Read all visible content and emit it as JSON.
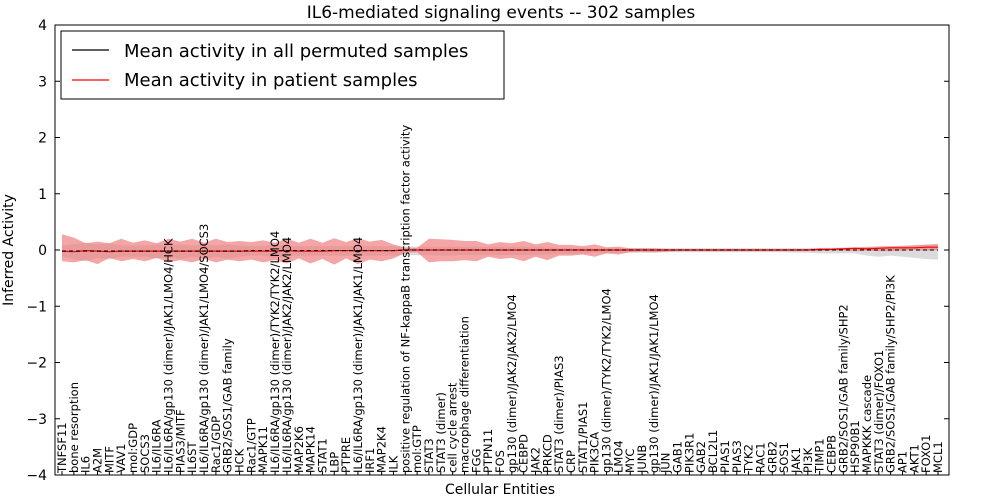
{
  "chart_data": {
    "type": "line",
    "title": "IL6-mediated signaling events -- 302 samples",
    "xlabel": "Cellular Entities",
    "ylabel": "Inferred Activity",
    "ylim": [
      -4,
      4
    ],
    "yticks": [
      -4,
      -3,
      -2,
      -1,
      0,
      1,
      2,
      3,
      4
    ],
    "grid": false,
    "legend_position": "top-left",
    "colors": {
      "permuted": "#000000",
      "patient": "#ff0000",
      "patient_band": "#f08080",
      "permuted_band": "#bdbdbd"
    },
    "categories": [
      "TNFSF11",
      "bone resorption",
      "IL6",
      "A2M",
      "MITF",
      "VAV1",
      "mol:GDP",
      "SOCS3",
      "IL6/IL6RA",
      "IL6/IL6RA/gp130 (dimer)/JAK1/LMO4/HCK",
      "PIAS3/MITF",
      "IL6ST",
      "IL6/IL6RA/gp130 (dimer)/JAK1/LMO4/SOCS3",
      "Rac1/GDP",
      "GRB2/SOS1/GAB family",
      "HCK",
      "Rac1/GTP",
      "MAPK11",
      "IL6/IL6RA/gp130 (dimer)/TYK2/TYK2/LMO4",
      "IL6/IL6RA/gp130 (dimer)/JAK2/JAK2/LMO4",
      "MAP2K6",
      "MAPK14",
      "STAT1",
      "LBP",
      "PTPRE",
      "IL6/IL6RA/gp130 (dimer)/JAK1/JAK1/LMO4",
      "IRF1",
      "MAP2K4",
      "ILK",
      "positive regulation of NF-kappaB transcription factor activity",
      "mol:GTP",
      "STAT3",
      "STAT3 (dimer)",
      "cell cycle arrest",
      "macrophage differentiation",
      "FGG",
      "PTPN11",
      "FOS",
      "gp130 (dimer)/JAK2/JAK2/LMO4",
      "CEBPD",
      "JAK2",
      "PRKCD",
      "STAT3 (dimer)/PIAS3",
      "CRP",
      "STAT1/PIAS1",
      "PIK3CA",
      "gp130 (dimer)/TYK2/TYK2/LMO4",
      "LMO4",
      "MYC",
      "JUNB",
      "gp130 (dimer)/JAK1/JAK1/LMO4",
      "JUN",
      "GAB1",
      "PIK3R1",
      "GAB2",
      "BCL2L1",
      "PIAS1",
      "PIAS3",
      "TYK2",
      "RAC1",
      "GRB2",
      "SOS1",
      "JAK1",
      "PI3K",
      "TIMP1",
      "CEBPB",
      "GRB2/SOS1/GAB family/SHP2",
      "HSP90B1",
      "MAPKKK cascade",
      "STAT3 (dimer)/FOXO1",
      "GRB2/SOS1/GAB family/SHP2/PI3K",
      "AP1",
      "AKT1",
      "FOXO1",
      "MCL1"
    ],
    "series": [
      {
        "name": "Mean activity in all permuted samples",
        "values": [
          -0.02,
          -0.02,
          -0.02,
          -0.02,
          -0.02,
          -0.02,
          -0.02,
          -0.02,
          -0.02,
          -0.02,
          -0.02,
          -0.02,
          -0.02,
          -0.02,
          -0.02,
          -0.02,
          -0.01,
          -0.01,
          -0.01,
          -0.01,
          -0.01,
          -0.01,
          -0.01,
          -0.01,
          -0.01,
          -0.01,
          -0.01,
          -0.01,
          -0.01,
          0.0,
          0.0,
          0.0,
          0.0,
          0.0,
          0.0,
          0.0,
          0.0,
          0.0,
          0.0,
          0.0,
          0.0,
          0.0,
          0.0,
          0.0,
          0.0,
          0.0,
          0.0,
          0.0,
          0.0,
          0.0,
          0.0,
          0.0,
          0.0,
          0.0,
          0.0,
          0.0,
          0.0,
          0.0,
          0.0,
          0.0,
          0.0,
          0.0,
          0.0,
          0.0,
          0.0,
          0.0,
          0.0,
          0.0,
          0.0,
          0.0,
          0.0,
          0.0,
          0.0,
          0.0,
          0.0
        ],
        "lower": [
          -0.12,
          -0.16,
          -0.2,
          -0.14,
          -0.17,
          -0.12,
          -0.12,
          -0.12,
          -0.15,
          -0.12,
          -0.16,
          -0.12,
          -0.15,
          -0.12,
          -0.16,
          -0.12,
          -0.1,
          -0.1,
          -0.15,
          -0.1,
          -0.1,
          -0.1,
          -0.1,
          -0.1,
          -0.1,
          -0.1,
          -0.1,
          -0.1,
          -0.1,
          -0.09,
          -0.09,
          -0.09,
          -0.1,
          -0.1,
          -0.09,
          -0.09,
          -0.09,
          -0.09,
          -0.09,
          -0.09,
          -0.09,
          -0.08,
          -0.07,
          -0.07,
          -0.07,
          -0.05,
          -0.06,
          -0.05,
          -0.05,
          -0.05,
          -0.05,
          -0.04,
          -0.04,
          -0.04,
          -0.04,
          -0.04,
          -0.04,
          -0.04,
          -0.04,
          -0.04,
          -0.04,
          -0.04,
          -0.05,
          -0.05,
          -0.06,
          -0.06,
          -0.06,
          -0.06,
          -0.1,
          -0.12,
          -0.1,
          -0.12,
          -0.14,
          -0.16,
          -0.17
        ],
        "upper": [
          0.08,
          0.1,
          0.13,
          0.1,
          0.12,
          0.08,
          0.08,
          0.08,
          0.1,
          0.08,
          0.1,
          0.08,
          0.1,
          0.08,
          0.1,
          0.08,
          0.07,
          0.07,
          0.1,
          0.07,
          0.07,
          0.07,
          0.07,
          0.07,
          0.07,
          0.07,
          0.07,
          0.07,
          0.07,
          0.06,
          0.06,
          0.06,
          0.06,
          0.06,
          0.06,
          0.06,
          0.06,
          0.06,
          0.06,
          0.06,
          0.06,
          0.05,
          0.04,
          0.04,
          0.04,
          0.03,
          0.03,
          0.03,
          0.03,
          0.03,
          0.03,
          0.03,
          0.03,
          0.03,
          0.03,
          0.03,
          0.03,
          0.03,
          0.03,
          0.03,
          0.03,
          0.03,
          0.03,
          0.03,
          0.04,
          0.04,
          0.04,
          0.04,
          0.06,
          0.07,
          0.06,
          0.08,
          0.09,
          0.1,
          0.11
        ]
      },
      {
        "name": "Mean activity in patient samples",
        "values": [
          -0.02,
          -0.03,
          -0.01,
          -0.02,
          -0.03,
          -0.02,
          -0.02,
          -0.02,
          -0.02,
          -0.02,
          -0.02,
          -0.02,
          -0.02,
          -0.02,
          -0.02,
          -0.02,
          -0.02,
          -0.02,
          -0.02,
          -0.01,
          -0.02,
          -0.02,
          -0.02,
          -0.01,
          -0.01,
          -0.01,
          -0.01,
          -0.01,
          -0.01,
          0.0,
          0.0,
          0.0,
          0.0,
          0.0,
          0.0,
          0.0,
          0.0,
          0.0,
          0.0,
          0.0,
          0.0,
          0.0,
          0.0,
          0.0,
          0.0,
          0.0,
          0.0,
          0.0,
          0.0,
          0.0,
          0.0,
          0.0,
          0.0,
          0.0,
          0.0,
          0.0,
          0.0,
          0.0,
          0.0,
          0.0,
          0.0,
          0.0,
          0.0,
          0.0,
          0.01,
          0.01,
          0.02,
          0.03,
          0.02,
          0.03,
          0.04,
          0.04,
          0.04,
          0.05,
          0.05
        ],
        "lower": [
          -0.2,
          -0.22,
          -0.18,
          -0.25,
          -0.14,
          -0.2,
          -0.16,
          -0.2,
          -0.14,
          -0.22,
          -0.18,
          -0.22,
          -0.16,
          -0.22,
          -0.17,
          -0.2,
          -0.17,
          -0.22,
          -0.18,
          -0.24,
          -0.15,
          -0.24,
          -0.16,
          -0.26,
          -0.15,
          -0.25,
          -0.17,
          -0.2,
          -0.15,
          -0.05,
          -0.04,
          -0.22,
          -0.2,
          -0.2,
          -0.18,
          -0.2,
          -0.12,
          -0.16,
          -0.14,
          -0.2,
          -0.12,
          -0.18,
          -0.1,
          -0.1,
          -0.08,
          -0.12,
          -0.06,
          -0.08,
          -0.04,
          -0.03,
          -0.04,
          -0.03,
          -0.02,
          -0.02,
          -0.02,
          -0.02,
          -0.02,
          -0.02,
          -0.02,
          -0.02,
          -0.02,
          -0.02,
          -0.02,
          -0.02,
          -0.02,
          -0.01,
          -0.01,
          -0.02,
          -0.01,
          -0.02,
          -0.02,
          -0.01,
          0.0,
          -0.01,
          0.0
        ],
        "upper": [
          0.28,
          0.22,
          0.12,
          0.15,
          0.12,
          0.2,
          0.13,
          0.17,
          0.12,
          0.2,
          0.15,
          0.2,
          0.13,
          0.2,
          0.14,
          0.16,
          0.14,
          0.17,
          0.13,
          0.2,
          0.13,
          0.2,
          0.13,
          0.21,
          0.14,
          0.21,
          0.15,
          0.18,
          0.1,
          0.04,
          0.04,
          0.2,
          0.19,
          0.18,
          0.16,
          0.16,
          0.1,
          0.14,
          0.12,
          0.16,
          0.1,
          0.14,
          0.09,
          0.09,
          0.07,
          0.1,
          0.05,
          0.06,
          0.03,
          0.03,
          0.03,
          0.02,
          0.02,
          0.02,
          0.02,
          0.02,
          0.02,
          0.02,
          0.02,
          0.02,
          0.02,
          0.02,
          0.02,
          0.02,
          0.03,
          0.03,
          0.04,
          0.05,
          0.05,
          0.06,
          0.07,
          0.07,
          0.08,
          0.09,
          0.1
        ]
      }
    ]
  }
}
